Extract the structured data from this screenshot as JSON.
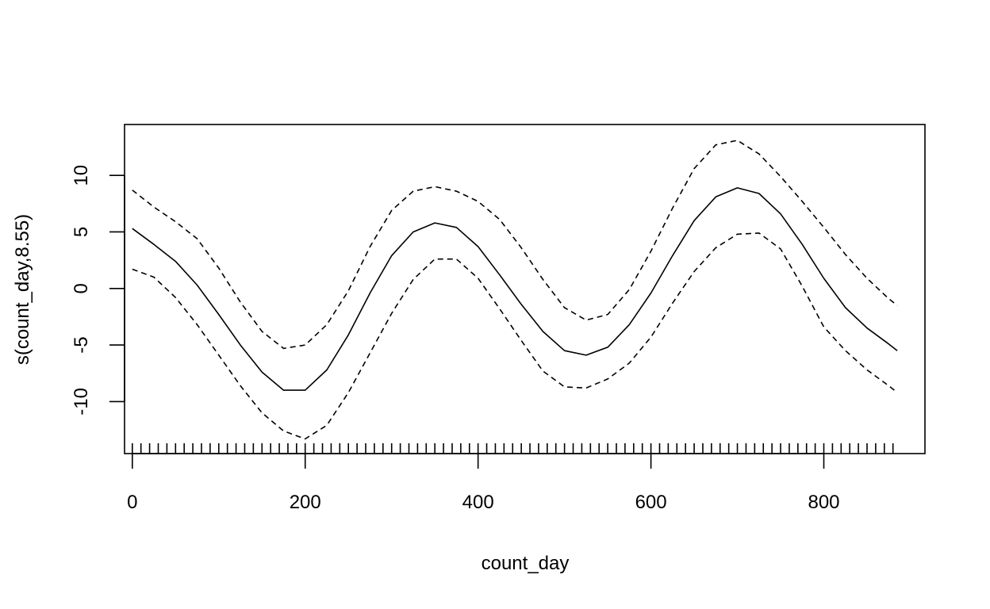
{
  "chart_data": {
    "type": "line",
    "title": "",
    "xlabel": "count_day",
    "ylabel": "s(count_day,8.55)",
    "xlim": [
      -9,
      917
    ],
    "ylim": [
      -14.6,
      14.5
    ],
    "x_ticks": [
      0,
      200,
      400,
      600,
      800
    ],
    "y_ticks": [
      -10,
      -5,
      0,
      5,
      10
    ],
    "grid": false,
    "legend": "none",
    "x": [
      0,
      25,
      50,
      75,
      100,
      125,
      150,
      175,
      200,
      225,
      250,
      275,
      300,
      325,
      350,
      375,
      400,
      425,
      450,
      475,
      500,
      525,
      550,
      575,
      600,
      625,
      650,
      675,
      700,
      725,
      750,
      775,
      800,
      825,
      850,
      875,
      885
    ],
    "series": [
      {
        "style": "solid",
        "values": [
          5.3,
          3.9,
          2.4,
          0.3,
          -2.3,
          -5.0,
          -7.4,
          -9.0,
          -9.0,
          -7.2,
          -4.1,
          -0.4,
          2.9,
          5.0,
          5.8,
          5.4,
          3.7,
          1.2,
          -1.4,
          -3.8,
          -5.5,
          -5.9,
          -5.2,
          -3.2,
          -0.4,
          2.9,
          6.0,
          8.1,
          8.9,
          8.4,
          6.6,
          3.9,
          0.9,
          -1.7,
          -3.5,
          -4.9,
          -5.5
        ]
      },
      {
        "style": "dashed",
        "values": [
          8.7,
          7.2,
          5.9,
          4.4,
          1.8,
          -1.2,
          -3.8,
          -5.3,
          -5.0,
          -3.2,
          -0.2,
          3.7,
          6.9,
          8.6,
          9.0,
          8.6,
          7.7,
          6.1,
          3.6,
          0.8,
          -1.7,
          -2.8,
          -2.3,
          -0.1,
          3.3,
          7.1,
          10.6,
          12.7,
          13.1,
          11.9,
          9.9,
          7.7,
          5.4,
          3.0,
          0.9,
          -0.9,
          -1.5
        ]
      },
      {
        "style": "dashed",
        "values": [
          1.7,
          1.0,
          -0.8,
          -3.2,
          -5.9,
          -8.6,
          -11.0,
          -12.6,
          -13.3,
          -12.1,
          -9.2,
          -5.7,
          -2.2,
          0.8,
          2.6,
          2.6,
          0.9,
          -1.8,
          -4.6,
          -7.3,
          -8.7,
          -8.8,
          -8.0,
          -6.6,
          -4.3,
          -1.3,
          1.5,
          3.6,
          4.8,
          4.9,
          3.5,
          0.2,
          -3.4,
          -5.5,
          -7.2,
          -8.6,
          -9.2
        ]
      }
    ],
    "rug": {
      "from": 0,
      "to": 882,
      "step": 10
    }
  }
}
